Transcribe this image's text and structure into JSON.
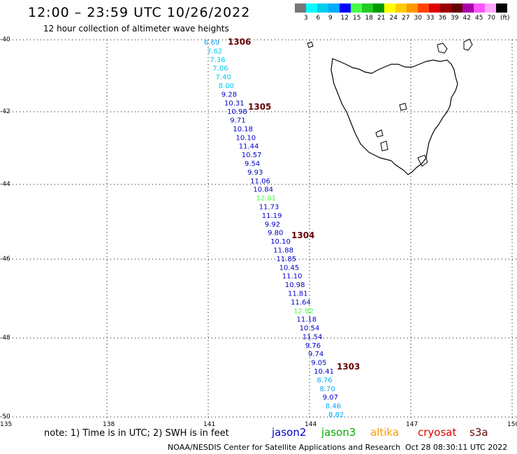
{
  "header": {
    "title": "12:00 – 23:59 UTC 10/26/2022",
    "subtitle": "12 hour collection of altimeter wave heights"
  },
  "scale": {
    "colors": [
      "#777777",
      "#00ffff",
      "#00ccee",
      "#00aaff",
      "#0000ff",
      "#44ff44",
      "#22cc22",
      "#009900",
      "#ffff00",
      "#ffcc00",
      "#ff9900",
      "#ff4400",
      "#dd0000",
      "#990000",
      "#660000",
      "#aa00aa",
      "#ff55ff",
      "#ffaaff",
      "#000000"
    ],
    "labels": [
      "3",
      "6",
      "9",
      "12",
      "15",
      "18",
      "21",
      "24",
      "27",
      "30",
      "33",
      "36",
      "39",
      "42",
      "45",
      "70"
    ],
    "unit": "(ft)"
  },
  "axes": {
    "lat_labels": [
      "-40",
      "-42",
      "-44",
      "-46",
      "-48",
      "-50"
    ],
    "lon_labels": [
      "135",
      "138",
      "141",
      "144",
      "147",
      "150"
    ]
  },
  "track": {
    "time_labels": [
      "1306",
      "1305",
      "1304",
      "1303"
    ],
    "values": [
      "6.69",
      "7.62",
      "7.36",
      "7.06",
      "7.40",
      "8.00",
      "9.28",
      "10.31",
      "10.98",
      "9.71",
      "10.18",
      "10.10",
      "11.44",
      "10.57",
      "9.54",
      "9.93",
      "11.06",
      "10.84",
      "12.01",
      "11.73",
      "11.19",
      "9.92",
      "9.80",
      "10.10",
      "11.88",
      "11.85",
      "10.45",
      "11.10",
      "10.98",
      "11.81",
      "11.64",
      "12.82",
      "11.18",
      "10.54",
      "11.54",
      "9.76",
      "9.74",
      "9.05",
      "10.41",
      "8.76",
      "8.70",
      "9.07",
      "8.46",
      "8.82"
    ],
    "value_colors": [
      "#00aaff",
      "#00ccee",
      "#00ccee",
      "#00ccee",
      "#00ccee",
      "#00ccee",
      "#0000cc",
      "#0000cc",
      "#0000cc",
      "#0000cc",
      "#0000cc",
      "#0000cc",
      "#0000cc",
      "#0000cc",
      "#0000cc",
      "#0000cc",
      "#0000cc",
      "#0000cc",
      "#44ff44",
      "#0000cc",
      "#0000cc",
      "#0000cc",
      "#0000cc",
      "#0000cc",
      "#0000cc",
      "#0000cc",
      "#0000cc",
      "#0000cc",
      "#0000cc",
      "#0000cc",
      "#0000cc",
      "#44ff44",
      "#0000cc",
      "#0000cc",
      "#0000cc",
      "#0000cc",
      "#0000cc",
      "#0000cc",
      "#0000cc",
      "#00aaff",
      "#00aaff",
      "#0000cc",
      "#00aaff",
      "#00aaff"
    ],
    "time_label_color": "#660000"
  },
  "footer": {
    "note": "note: 1) Time is in UTC; 2) SWH is in feet",
    "credit": "NOAA/NESDIS Center for Satellite Applications and Research",
    "timestamp": "Oct 28 08:30:11 UTC 2022",
    "satellites": [
      {
        "name": "jason2",
        "color": "#0000cc"
      },
      {
        "name": "jason3",
        "color": "#00aa00"
      },
      {
        "name": "altika",
        "color": "#ff9900"
      },
      {
        "name": "cryosat",
        "color": "#dd0000"
      },
      {
        "name": "s3a",
        "color": "#660000"
      }
    ]
  }
}
